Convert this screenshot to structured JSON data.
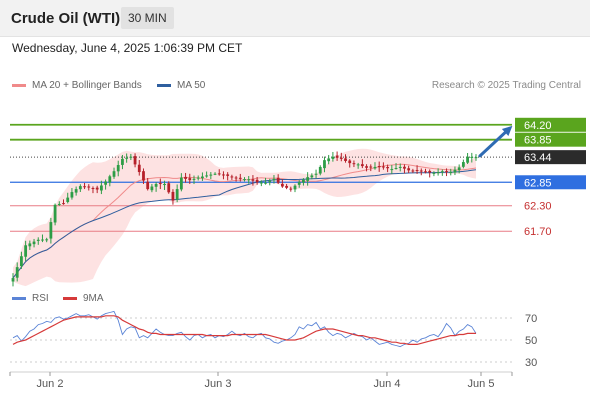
{
  "header": {
    "title": "Crude Oil (WTI)",
    "timeframe": "30 MIN"
  },
  "timestamp": "Wednesday, June 4, 2025 1:06:39 PM CET",
  "legend": {
    "ma20": "MA 20 + Bollinger Bands",
    "ma50": "MA 50",
    "rsi": "RSI",
    "rsi_ma": "9MA"
  },
  "credit": "Research © 2025 Trading Central",
  "colors": {
    "ma20": "#f08a8a",
    "ma50": "#2f5f9f",
    "band": "#fde2e2",
    "target_green": "#5aa51e",
    "pivot_blue": "#2f6fe0",
    "support_red": "#e87c85",
    "candle_up": "#2e9d46",
    "candle_down": "#b6202a",
    "rsi": "#5b84d6",
    "rsi_ma": "#d63a3a",
    "arrow": "#2f6bb3"
  },
  "chart_data": [
    {
      "type": "candlestick",
      "yscale": [
        60.32,
        64.97
      ],
      "levels": [
        {
          "value": 64.2,
          "label": "64.20",
          "kind": "resistance"
        },
        {
          "value": 63.85,
          "label": "63.85",
          "kind": "resistance"
        },
        {
          "value": 63.44,
          "label": "63.44",
          "kind": "last"
        },
        {
          "value": 62.85,
          "label": "62.85",
          "kind": "pivot"
        },
        {
          "value": 62.3,
          "label": "62.30",
          "kind": "support"
        },
        {
          "value": 61.7,
          "label": "61.70",
          "kind": "support"
        }
      ],
      "x_ticks": [
        "Jun 2",
        "Jun 3",
        "Jun 4",
        "Jun 5"
      ],
      "anchors": [
        [
          0,
          60.6
        ],
        [
          3,
          61.37
        ],
        [
          6,
          61.5
        ],
        [
          8,
          61.51
        ],
        [
          10,
          62.32
        ],
        [
          12,
          62.36
        ],
        [
          14,
          62.62
        ],
        [
          16,
          62.76
        ],
        [
          18,
          62.73
        ],
        [
          20,
          62.68
        ],
        [
          22,
          62.87
        ],
        [
          24,
          63.11
        ],
        [
          26,
          63.4
        ],
        [
          28,
          63.45
        ],
        [
          30,
          63.09
        ],
        [
          32,
          62.69
        ],
        [
          34,
          62.81
        ],
        [
          36,
          62.81
        ],
        [
          38,
          62.42
        ],
        [
          40,
          62.96
        ],
        [
          42,
          62.9
        ],
        [
          44,
          62.96
        ],
        [
          46,
          63.01
        ],
        [
          48,
          63.05
        ],
        [
          50,
          63.02
        ],
        [
          52,
          62.98
        ],
        [
          54,
          62.93
        ],
        [
          56,
          62.92
        ],
        [
          58,
          62.85
        ],
        [
          60,
          62.84
        ],
        [
          62,
          62.93
        ],
        [
          64,
          62.75
        ],
        [
          66,
          62.69
        ],
        [
          68,
          62.85
        ],
        [
          70,
          62.97
        ],
        [
          72,
          63.05
        ],
        [
          74,
          63.37
        ],
        [
          76,
          63.45
        ],
        [
          78,
          63.4
        ],
        [
          80,
          63.3
        ],
        [
          82,
          63.27
        ],
        [
          84,
          63.19
        ],
        [
          86,
          63.21
        ],
        [
          88,
          63.2
        ],
        [
          90,
          63.16
        ],
        [
          92,
          63.21
        ],
        [
          94,
          63.13
        ],
        [
          96,
          63.12
        ],
        [
          98,
          63.09
        ],
        [
          100,
          63.07
        ],
        [
          102,
          63.11
        ],
        [
          104,
          63.09
        ],
        [
          106,
          63.2
        ],
        [
          108,
          63.45
        ],
        [
          110,
          63.44
        ]
      ]
    },
    {
      "type": "line",
      "name": "RSI",
      "yscale": [
        30,
        70
      ],
      "y_ticks": [
        70,
        50,
        30
      ],
      "series": [
        {
          "name": "RSI",
          "values": [
            52,
            54,
            49,
            53,
            58,
            60,
            64,
            65,
            67,
            66,
            70,
            71,
            69,
            70,
            72,
            74,
            72,
            72,
            73,
            71,
            69,
            72,
            74,
            75,
            76,
            68,
            55,
            60,
            62,
            61,
            52,
            54,
            52,
            56,
            60,
            57,
            55,
            54,
            54,
            56,
            57,
            53,
            50,
            54,
            55,
            52,
            54,
            55,
            52,
            54,
            53,
            55,
            58,
            55,
            54,
            56,
            53,
            52,
            55,
            56,
            52,
            51,
            48,
            47,
            49,
            50,
            52,
            55,
            62,
            60,
            64,
            63,
            66,
            60,
            62,
            57,
            54,
            56,
            55,
            52,
            54,
            56,
            54,
            53,
            50,
            52,
            49,
            46,
            47,
            48,
            46,
            45,
            44,
            46,
            47,
            50,
            48,
            51,
            52,
            54,
            55,
            53,
            58,
            65,
            61,
            54,
            58,
            60,
            64,
            62,
            56
          ]
        },
        {
          "name": "9MA",
          "values": [
            46,
            48,
            49,
            50,
            52,
            54,
            56,
            58,
            60,
            62,
            64,
            66,
            68,
            69,
            70,
            71,
            71,
            71,
            71,
            71,
            71,
            71,
            72,
            72,
            72,
            71,
            68,
            66,
            64,
            62,
            60,
            59,
            57,
            56,
            56,
            55,
            55,
            55,
            55,
            55,
            55,
            55,
            55,
            55,
            55,
            55,
            54,
            54,
            54,
            54,
            54,
            54,
            55,
            55,
            55,
            55,
            55,
            55,
            55,
            55,
            55,
            54,
            53,
            52,
            51,
            50,
            50,
            50,
            51,
            52,
            54,
            56,
            58,
            59,
            60,
            60,
            60,
            59,
            58,
            57,
            56,
            55,
            54,
            54,
            53,
            52,
            52,
            51,
            50,
            49,
            48,
            48,
            47,
            47,
            46,
            46,
            46,
            47,
            48,
            49,
            50,
            51,
            52,
            53,
            54,
            54,
            55,
            55,
            56,
            56,
            56
          ]
        }
      ]
    }
  ]
}
